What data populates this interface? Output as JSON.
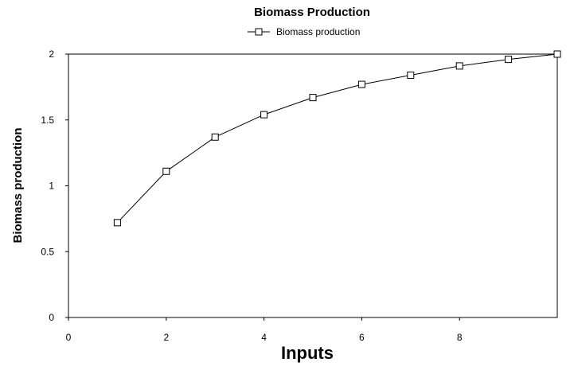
{
  "chart_data": {
    "type": "line",
    "title": "Biomass Production",
    "xlabel": "Inputs",
    "ylabel": "Biomass production",
    "xlim": [
      0,
      10
    ],
    "ylim": [
      0,
      2
    ],
    "x_ticks": [
      0,
      2,
      4,
      6,
      8
    ],
    "x_tick_labels": [
      "0",
      "2",
      "4",
      "6",
      "8"
    ],
    "y_ticks": [
      0,
      0.5,
      1,
      1.5,
      2
    ],
    "y_tick_labels": [
      "0",
      "0.5",
      "1",
      "1.5",
      "2"
    ],
    "grid": false,
    "legend_position": "top-center",
    "series": [
      {
        "name": "Biomass production",
        "marker": "square",
        "color": "#000000",
        "x": [
          1,
          2,
          3,
          4,
          5,
          6,
          7,
          8,
          9,
          10
        ],
        "y": [
          0.72,
          1.11,
          1.37,
          1.54,
          1.67,
          1.77,
          1.84,
          1.91,
          1.96,
          2.0
        ]
      }
    ]
  }
}
